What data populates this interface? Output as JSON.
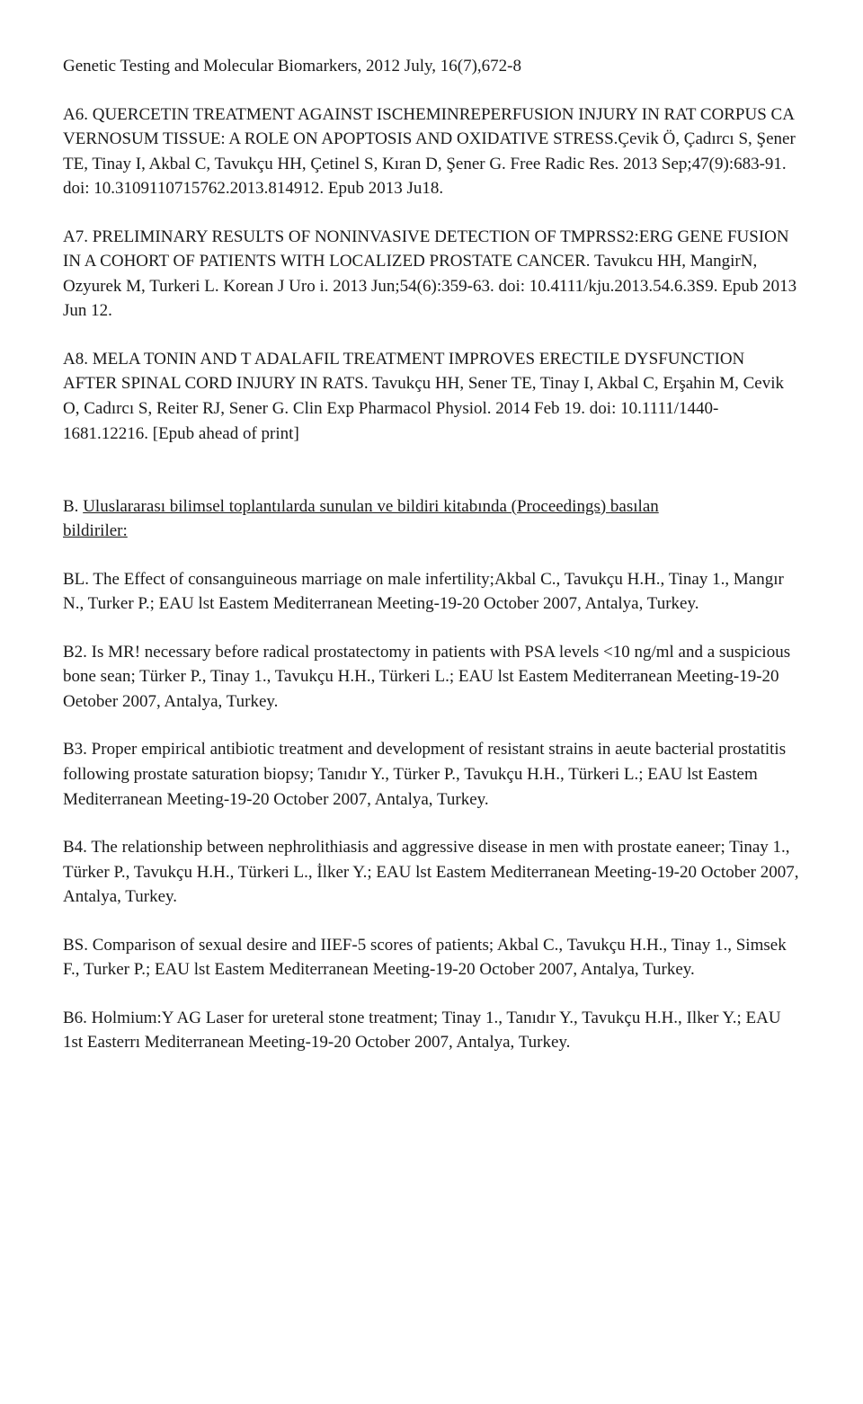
{
  "header_line": "Genetic Testing and Molecular Biomarkers, 2012 July, 16(7),672-8",
  "a6": {
    "title": "A6. QUERCETIN TREATMENT AGAINST ISCHEMINREPERFUSION INJURY IN RAT CORPUS CA VERNOSUM TISSUE: A ROLE ON APOPTOSIS AND OXIDATIVE STRESS.",
    "body": "Çevik Ö, Çadırcı S, Şener TE, Tinay I, Akbal C, Tavukçu HH, Çetinel S, Kıran D, Şener G. Free Radic Res. 2013 Sep;47(9):683-91. doi: 10.3109110715762.2013.814912. Epub 2013 Ju18."
  },
  "a7": {
    "title": "A7. PRELIMINARY RESULTS OF NONINVASIVE DETECTION OF TMPRSS2:ERG GENE FUSION IN A COHORT OF PATIENTS WITH LOCALIZED PROSTATE CANCER.",
    "body": " Tavukcu HH, MangirN, Ozyurek M, Turkeri L. Korean J Uro i. 2013 Jun;54(6):359-63. doi: 10.4111/kju.2013.54.6.3S9. Epub 2013 Jun 12."
  },
  "a8": {
    "title": "A8. MELA TONIN AND T ADALAFIL TREATMENT IMPROVES ERECTILE DYSFUNCTION AFTER SPINAL CORD INJURY IN RATS.",
    "body": " Tavukçu HH, Sener TE, Tinay I, Akbal C, Erşahin M, Cevik O, Cadırcı S, Reiter RJ, Sener G. Clin Exp Pharmacol Physiol. 2014 Feb 19. doi: 10.1111/1440-1681.12216. [Epub ahead of print]"
  },
  "sectionB": {
    "prefix": "B. ",
    "underlined": "Uluslararası bilimsel toplantılarda sunulan ve bildiri kitabında (Proceedings) basılan ",
    "suffix": "bildiriler:"
  },
  "bl": "BL. The Effect of consanguineous marriage on male infertility;Akbal C., Tavukçu H.H., Tinay 1., Mangır N., Turker P.; EAU lst Eastem Mediterranean Meeting-19-20 October 2007, Antalya, Turkey.",
  "b2": "B2. Is MR! necessary before radical prostatectomy in patients with PSA levels <10 ng/ml and a suspicious bone sean; Türker P., Tinay 1., Tavukçu H.H., Türkeri L.; EAU lst Eastem Mediterranean Meeting-19-20 Oetober 2007, Antalya, Turkey.",
  "b3": "B3. Proper empirical antibiotic treatment and development of resistant strains in aeute bacterial prostatitis following prostate saturation biopsy; Tanıdır Y., Türker P., Tavukçu H.H., Türkeri L.; EAU lst Eastem Mediterranean Meeting-19-20 October 2007, Antalya, Turkey.",
  "b4": "B4. The relationship between nephrolithiasis and aggressive disease in men with prostate eaneer; Tinay 1., Türker P., Tavukçu H.H., Türkeri L., İlker Y.; EAU lst Eastem Mediterranean Meeting-19-20 October 2007, Antalya, Turkey.",
  "bs": "BS. Comparison of sexual desire and IIEF-5 scores of patients; Akbal C., Tavukçu H.H., Tinay 1., Simsek F., Turker P.; EAU lst Eastem Mediterranean Meeting-19-20 October 2007, Antalya, Turkey.",
  "b6": "B6. Holmium:Y AG Laser for ureteral stone treatment; Tinay 1., Tanıdır Y., Tavukçu H.H., Ilker Y.; EAU 1st Easterrı Mediterranean Meeting-19-20 October 2007, Antalya, Turkey."
}
